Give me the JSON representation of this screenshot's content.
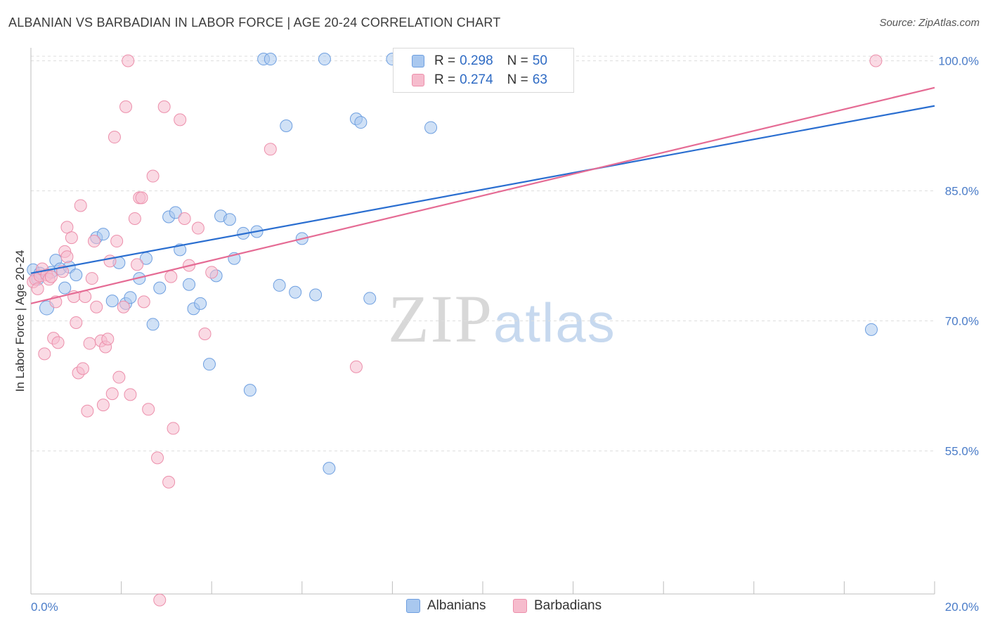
{
  "title": "ALBANIAN VS BARBADIAN IN LABOR FORCE | AGE 20-24 CORRELATION CHART",
  "source": "Source: ZipAtlas.com",
  "watermark": {
    "zip": "ZIP",
    "atlas": "atlas"
  },
  "colors": {
    "albanians_fill": "#a9c8ef",
    "albanians_stroke": "#6e9fe0",
    "albanians_line": "#2a6ed0",
    "barbadians_fill": "#f6bccd",
    "barbadians_stroke": "#ec8fab",
    "barbadians_line": "#e56b94",
    "grid": "#dedede",
    "tick_text": "#4a7cc8"
  },
  "legend": {
    "rows": [
      {
        "r_label": "R = ",
        "r_value": "0.298",
        "n_label": "N = ",
        "n_value": "50"
      },
      {
        "r_label": "R = ",
        "r_value": "0.274",
        "n_label": "N = ",
        "n_value": "63"
      }
    ]
  },
  "bottom_legend": [
    "Albanians",
    "Barbadians"
  ],
  "chart_data": {
    "type": "scatter",
    "title": "ALBANIAN VS BARBADIAN IN LABOR FORCE | AGE 20-24 CORRELATION CHART",
    "xlabel": "",
    "ylabel": "In Labor Force | Age 20-24",
    "xlim": [
      0,
      20
    ],
    "ylim": [
      38.5,
      101.5
    ],
    "x_tick_labels": [
      "0.0%",
      "20.0%"
    ],
    "y_ticks": [
      55,
      70,
      85,
      100
    ],
    "y_tick_labels": [
      "55.0%",
      "70.0%",
      "85.0%",
      "100.0%"
    ],
    "grid": true,
    "legend_position": "top-center",
    "series": [
      {
        "name": "Albanians",
        "r": 0.298,
        "n": 50,
        "trend": {
          "x": [
            0,
            20
          ],
          "y": [
            75.5,
            94.8
          ]
        },
        "points": [
          [
            0.05,
            75.9
          ],
          [
            0.2,
            75.5
          ],
          [
            0.35,
            71.5
          ],
          [
            0.45,
            75.6
          ],
          [
            0.55,
            77.0
          ],
          [
            0.65,
            76.0
          ],
          [
            0.75,
            73.8
          ],
          [
            0.85,
            76.2
          ],
          [
            1.0,
            75.3
          ],
          [
            1.45,
            79.6
          ],
          [
            1.6,
            80.0
          ],
          [
            1.8,
            72.3
          ],
          [
            1.95,
            76.7
          ],
          [
            2.1,
            72.0
          ],
          [
            2.2,
            72.7
          ],
          [
            2.4,
            74.9
          ],
          [
            2.55,
            77.2
          ],
          [
            2.7,
            69.6
          ],
          [
            2.85,
            73.8
          ],
          [
            3.05,
            82.0
          ],
          [
            3.2,
            82.5
          ],
          [
            3.3,
            78.2
          ],
          [
            3.5,
            74.2
          ],
          [
            3.6,
            71.4
          ],
          [
            3.75,
            72.0
          ],
          [
            3.95,
            65.0
          ],
          [
            4.1,
            75.2
          ],
          [
            4.2,
            82.1
          ],
          [
            4.4,
            81.7
          ],
          [
            4.5,
            77.2
          ],
          [
            4.7,
            80.1
          ],
          [
            4.85,
            62.0
          ],
          [
            5.0,
            80.3
          ],
          [
            5.15,
            100.2
          ],
          [
            5.3,
            100.2
          ],
          [
            5.5,
            74.1
          ],
          [
            5.65,
            92.5
          ],
          [
            5.85,
            73.3
          ],
          [
            6.0,
            79.5
          ],
          [
            6.3,
            73.0
          ],
          [
            6.5,
            100.2
          ],
          [
            6.6,
            53.0
          ],
          [
            7.2,
            93.3
          ],
          [
            7.3,
            92.9
          ],
          [
            7.5,
            72.6
          ],
          [
            8.0,
            100.2
          ],
          [
            8.85,
            92.3
          ],
          [
            9.25,
            100.2
          ],
          [
            18.6,
            69.0
          ],
          [
            0.15,
            74.8
          ]
        ]
      },
      {
        "name": "Barbadians",
        "r": 0.274,
        "n": 63,
        "trend": {
          "x": [
            0,
            20
          ],
          "y": [
            72.0,
            96.9
          ]
        },
        "points": [
          [
            0.05,
            74.5
          ],
          [
            0.1,
            74.8
          ],
          [
            0.15,
            73.7
          ],
          [
            0.2,
            75.2
          ],
          [
            0.25,
            76.0
          ],
          [
            0.3,
            66.2
          ],
          [
            0.35,
            75.3
          ],
          [
            0.4,
            74.8
          ],
          [
            0.5,
            68.0
          ],
          [
            0.55,
            72.2
          ],
          [
            0.6,
            67.5
          ],
          [
            0.7,
            75.7
          ],
          [
            0.75,
            78.0
          ],
          [
            0.8,
            77.4
          ],
          [
            0.8,
            80.8
          ],
          [
            0.9,
            79.6
          ],
          [
            0.95,
            72.8
          ],
          [
            1.0,
            69.8
          ],
          [
            1.05,
            64.0
          ],
          [
            1.1,
            83.3
          ],
          [
            1.15,
            64.5
          ],
          [
            1.2,
            72.8
          ],
          [
            1.25,
            59.6
          ],
          [
            1.3,
            67.4
          ],
          [
            1.4,
            79.2
          ],
          [
            1.45,
            71.6
          ],
          [
            1.55,
            67.7
          ],
          [
            1.6,
            60.3
          ],
          [
            1.65,
            67.0
          ],
          [
            1.7,
            67.9
          ],
          [
            1.75,
            76.9
          ],
          [
            1.8,
            61.6
          ],
          [
            1.85,
            91.2
          ],
          [
            1.9,
            79.2
          ],
          [
            1.95,
            63.5
          ],
          [
            2.05,
            71.6
          ],
          [
            2.1,
            94.7
          ],
          [
            2.15,
            100.0
          ],
          [
            2.2,
            61.5
          ],
          [
            2.3,
            81.8
          ],
          [
            2.4,
            84.2
          ],
          [
            2.45,
            84.2
          ],
          [
            2.5,
            72.2
          ],
          [
            2.6,
            59.8
          ],
          [
            2.7,
            86.7
          ],
          [
            2.8,
            54.2
          ],
          [
            2.85,
            37.8
          ],
          [
            2.95,
            94.7
          ],
          [
            3.05,
            51.4
          ],
          [
            3.1,
            75.1
          ],
          [
            3.15,
            57.6
          ],
          [
            3.3,
            93.2
          ],
          [
            3.4,
            81.8
          ],
          [
            3.5,
            76.4
          ],
          [
            3.7,
            80.7
          ],
          [
            3.85,
            68.5
          ],
          [
            4.0,
            75.6
          ],
          [
            5.3,
            89.8
          ],
          [
            7.2,
            64.7
          ],
          [
            18.7,
            100.0
          ],
          [
            2.35,
            76.5
          ],
          [
            1.35,
            74.9
          ],
          [
            0.45,
            75.1
          ]
        ]
      }
    ]
  }
}
